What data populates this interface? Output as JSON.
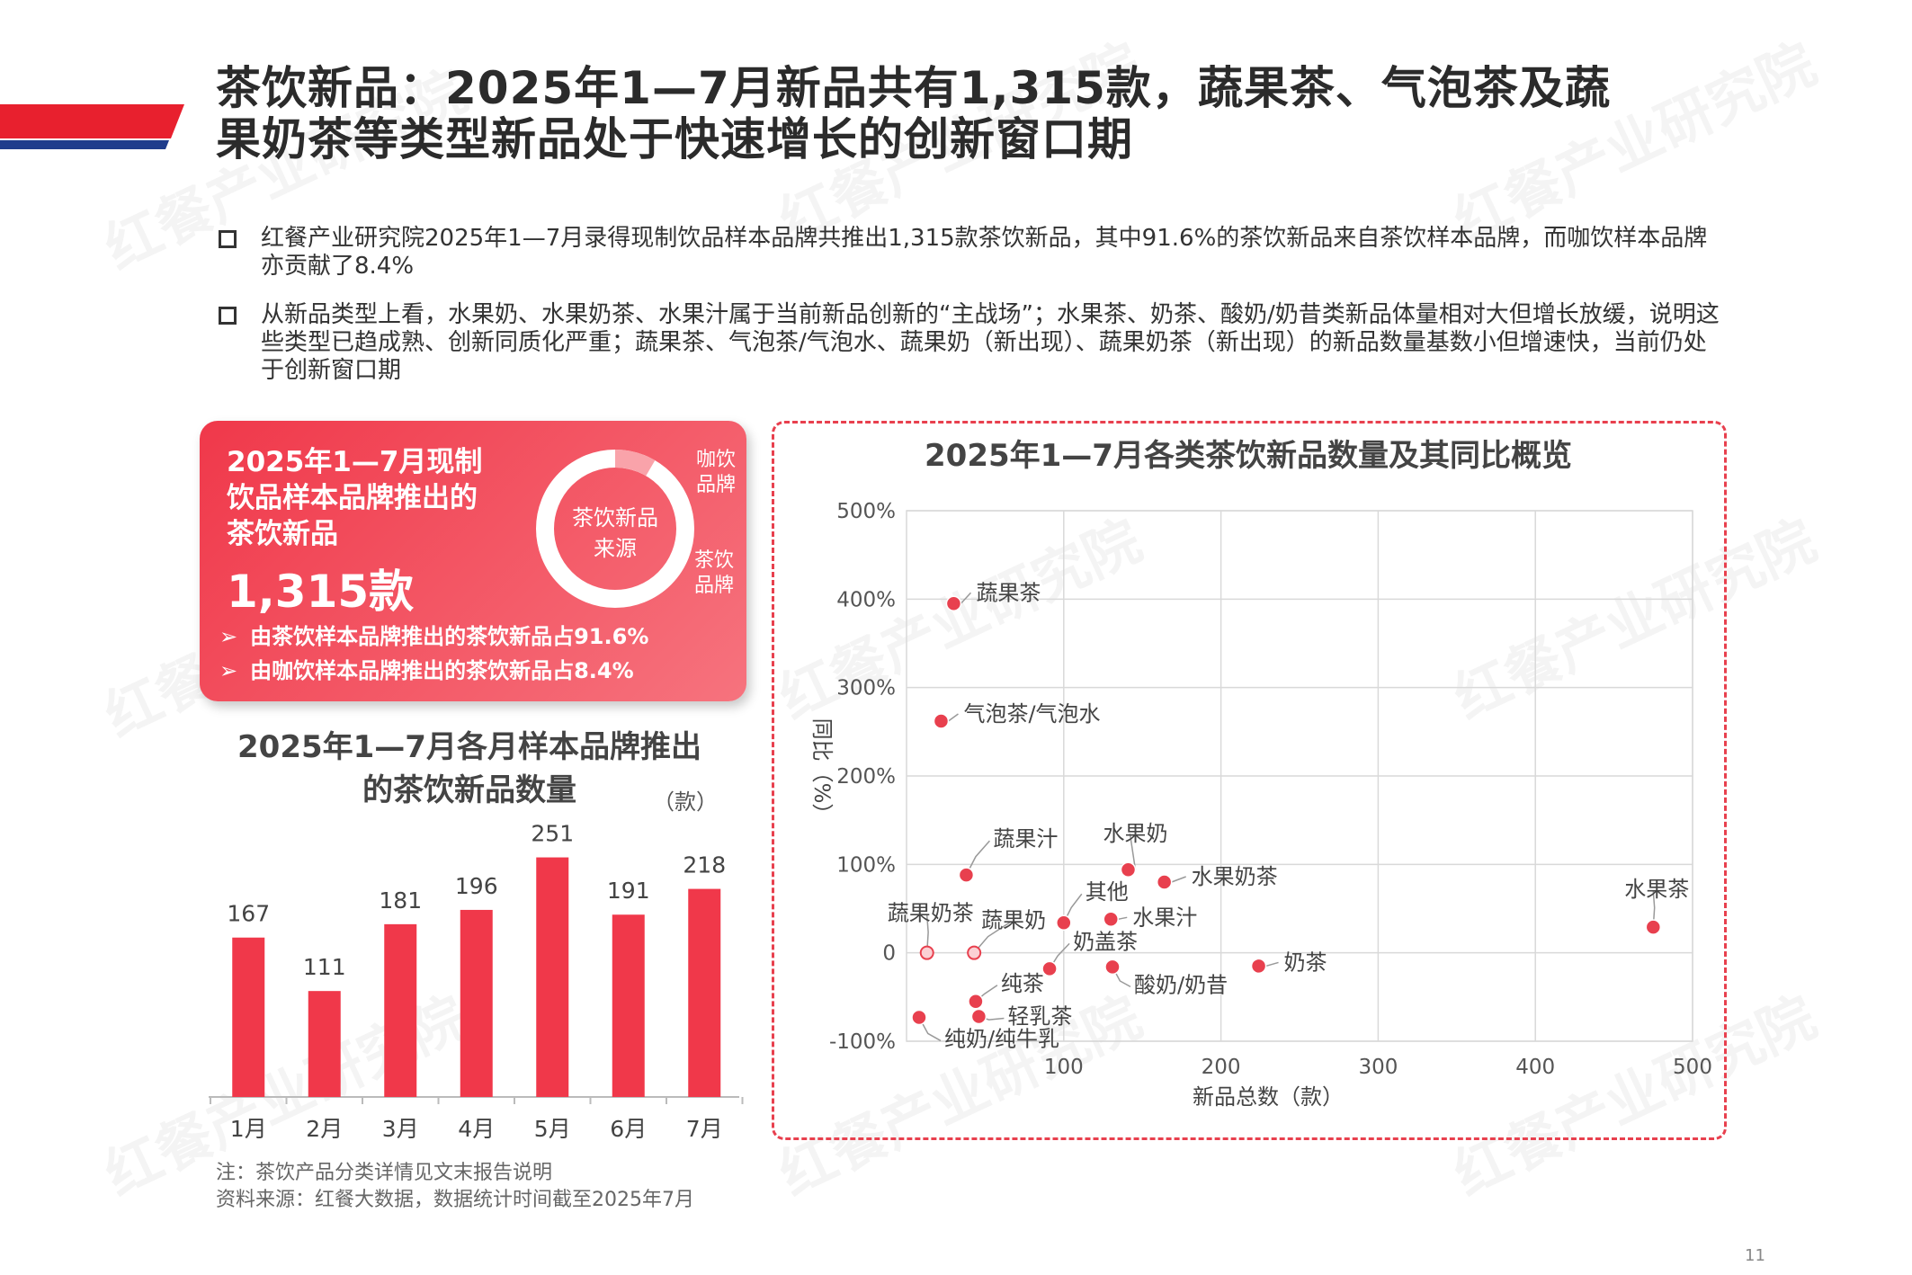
{
  "title": {
    "line1": "茶饮新品：2025年1—7月新品共有1,315款，蔬果茶、气泡茶及蔬",
    "line2": "果奶茶等类型新品处于快速增长的创新窗口期"
  },
  "watermark": "红餐产业研究院",
  "bullets": [
    "红餐产业研究院2025年1—7月录得现制饮品样本品牌共推出1,315款茶饮新品，其中91.6%的茶饮新品来自茶饮样本品牌，而咖饮样本品牌亦贡献了8.4%",
    "从新品类型上看，水果奶、水果奶茶、水果汁属于当前新品创新的“主战场”；水果茶、奶茶、酸奶/奶昔类新品体量相对大但增长放缓，说明这些类型已趋成熟、创新同质化严重；蔬果茶、气泡茶/气泡水、蔬果奶（新出现）、蔬果奶茶（新出现）的新品数量基数小但增速快，当前仍处于创新窗口期"
  ],
  "card": {
    "title_lines": [
      "2025年1—7月现制",
      "饮品样本品牌推出的",
      "茶饮新品"
    ],
    "total": "1,315款",
    "donut_center_lines": [
      "茶饮新品",
      "来源"
    ],
    "coffee_label_lines": [
      "咖饮",
      "品牌"
    ],
    "tea_label_lines": [
      "茶饮",
      "品牌"
    ],
    "tea_share": 91.6,
    "coffee_share": 8.4,
    "sub1": "由茶饮样本品牌推出的茶饮新品占91.6%",
    "sub2": "由咖饮样本品牌推出的茶饮新品占8.4%",
    "colors": {
      "ring": "#ffffff",
      "coffee_segment": "#f9a3aa"
    }
  },
  "notes": {
    "note": "注：茶饮产品分类详情见文末报告说明",
    "source": "资料来源：红餐大数据，数据统计时间截至2025年7月"
  },
  "page_number": "11",
  "colors": {
    "accent": "#e8404e",
    "bar": "#f0384a",
    "navy": "#1f3d8c"
  },
  "chart_data": [
    {
      "type": "bar",
      "title_lines": [
        "2025年1—7月各月样本品牌推出",
        "的茶饮新品数量"
      ],
      "unit": "（款）",
      "categories": [
        "1月",
        "2月",
        "3月",
        "4月",
        "5月",
        "6月",
        "7月"
      ],
      "values": [
        167,
        111,
        181,
        196,
        251,
        191,
        218
      ],
      "ylim": [
        0,
        260
      ]
    },
    {
      "type": "scatter",
      "title": "2025年1—7月各类茶饮新品数量及其同比概览",
      "xlabel": "新品总数（款）",
      "ylabel": "同比（%）",
      "xlim": [
        0,
        500
      ],
      "ylim": [
        -100,
        500
      ],
      "xticks": [
        {
          "value": 100,
          "label": "100"
        },
        {
          "value": 200,
          "label": "200"
        },
        {
          "value": 300,
          "label": "300"
        },
        {
          "value": 400,
          "label": "400"
        },
        {
          "value": 500,
          "label": "500"
        }
      ],
      "yticks": [
        {
          "value": 500,
          "label": "500%"
        },
        {
          "value": 400,
          "label": "400%"
        },
        {
          "value": 300,
          "label": "300%"
        },
        {
          "value": 200,
          "label": "200%"
        },
        {
          "value": 100,
          "label": "100%"
        },
        {
          "value": 0,
          "label": "0"
        },
        {
          "value": -100,
          "label": "-100%"
        }
      ],
      "grid": true,
      "points": [
        {
          "label": "蔬果茶",
          "x": 30,
          "y": 395,
          "new": false
        },
        {
          "label": "气泡茶/气泡水",
          "x": 22,
          "y": 262,
          "new": false
        },
        {
          "label": "蔬果汁",
          "x": 38,
          "y": 88,
          "new": false
        },
        {
          "label": "水果奶",
          "x": 141,
          "y": 94,
          "new": false
        },
        {
          "label": "水果奶茶",
          "x": 164,
          "y": 80,
          "new": false
        },
        {
          "label": "其他",
          "x": 100,
          "y": 34,
          "new": false
        },
        {
          "label": "水果汁",
          "x": 130,
          "y": 38,
          "new": false
        },
        {
          "label": "蔬果奶茶",
          "x": 13,
          "y": 0,
          "new": true
        },
        {
          "label": "蔬果奶",
          "x": 43,
          "y": 0,
          "new": true
        },
        {
          "label": "奶盖茶",
          "x": 91,
          "y": -18,
          "new": false
        },
        {
          "label": "酸奶/奶昔",
          "x": 131,
          "y": -16,
          "new": false
        },
        {
          "label": "奶茶",
          "x": 224,
          "y": -15,
          "new": false
        },
        {
          "label": "水果茶",
          "x": 475,
          "y": 29,
          "new": false
        },
        {
          "label": "纯茶",
          "x": 44,
          "y": -55,
          "new": false
        },
        {
          "label": "轻乳茶",
          "x": 46,
          "y": -72,
          "new": false
        },
        {
          "label": "纯奶/纯牛乳",
          "x": 8,
          "y": -73,
          "new": false
        }
      ]
    }
  ]
}
